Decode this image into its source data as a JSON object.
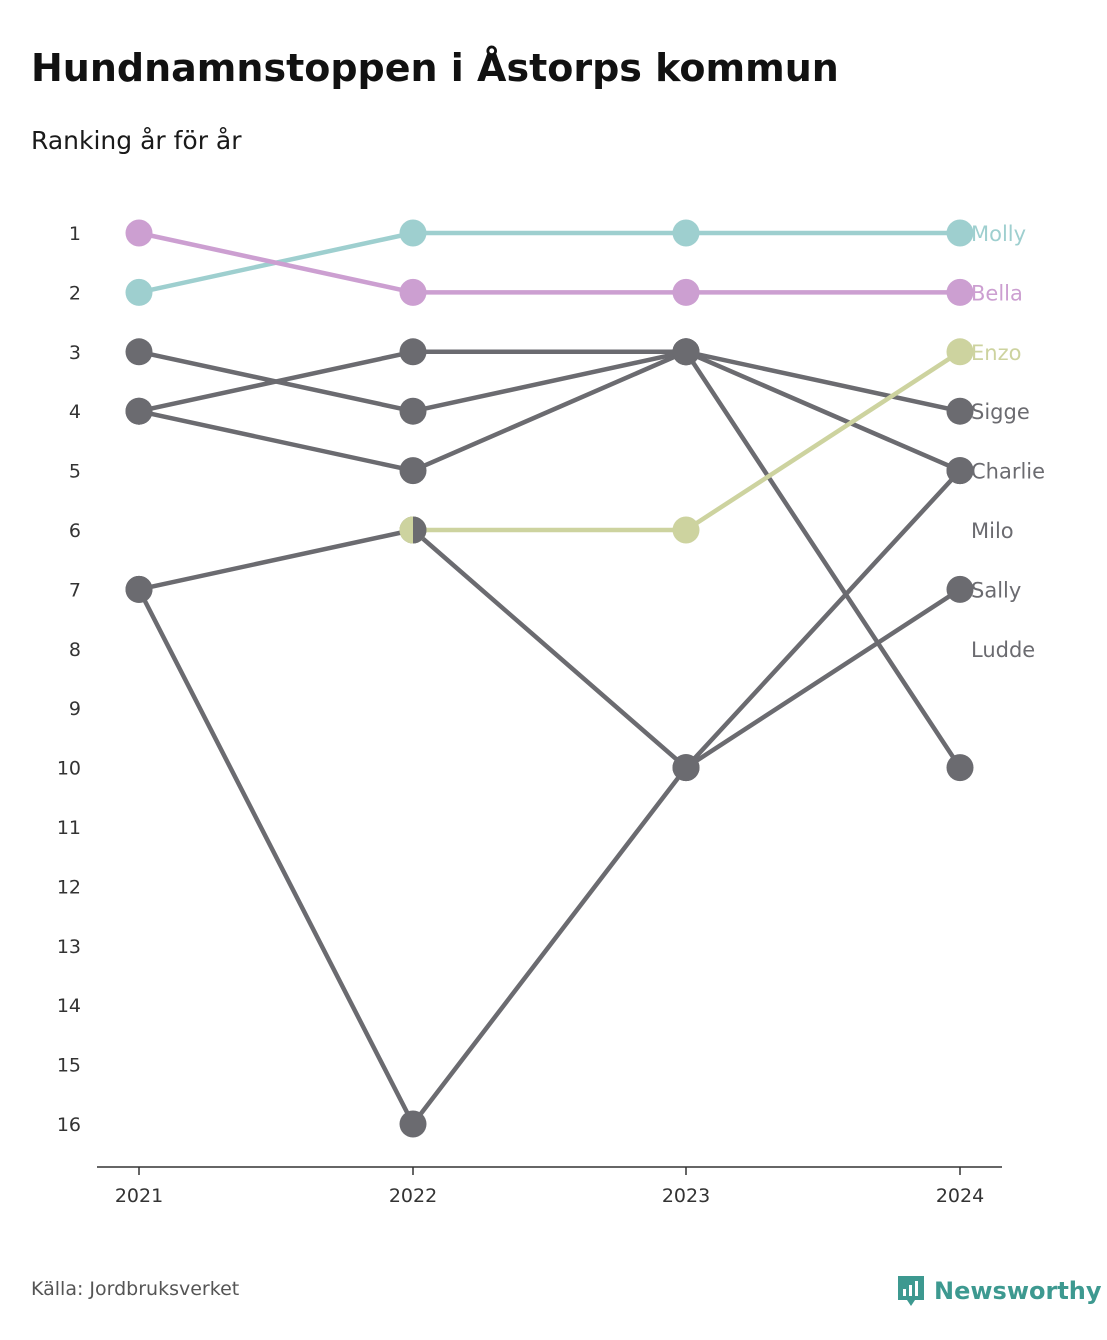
{
  "header": {
    "title": "Hundnamnstoppen i Åstorps kommun",
    "subtitle": "Ranking år för år"
  },
  "footer": {
    "source": "Källa: Jordbruksverket",
    "brand": "Newsworthy",
    "brand_icon": "newsworthy-logo-icon",
    "brand_color": "#3d9990"
  },
  "colors": {
    "default_line": "#6b6b70",
    "Molly": "#9ecfcf",
    "Bella": "#cc9fd1",
    "Enzo": "#cdd39f",
    "axis": "#333333"
  },
  "chart_data": {
    "type": "line",
    "title": "Hundnamnstoppen i Åstorps kommun",
    "subtitle": "Ranking år för år",
    "x": [
      "2021",
      "2022",
      "2023",
      "2024"
    ],
    "y_axis": {
      "reversed": true,
      "range": [
        1,
        16
      ],
      "ticks": [
        1,
        2,
        3,
        4,
        5,
        6,
        7,
        8,
        9,
        10,
        11,
        12,
        13,
        14,
        15,
        16
      ]
    },
    "grid": false,
    "legend": "direct labels at right end of lines",
    "series": [
      {
        "name": "Molly",
        "values": [
          2,
          1,
          1,
          1
        ],
        "color": "#9ecfcf"
      },
      {
        "name": "Bella",
        "values": [
          1,
          2,
          2,
          2
        ],
        "color": "#cc9fd1"
      },
      {
        "name": "Enzo",
        "values": [
          null,
          6,
          6,
          3
        ],
        "color": "#cdd39f"
      },
      {
        "name": "Sigge",
        "values": [
          3,
          4,
          3,
          4
        ],
        "color": "#6b6b70"
      },
      {
        "name": "Charlie",
        "values": [
          4,
          3,
          3,
          5
        ],
        "color": "#6b6b70"
      },
      {
        "name": "Milo",
        "values": [
          4,
          5,
          3,
          10
        ],
        "color": "#6b6b70"
      },
      {
        "name": "Sally",
        "values": [
          7,
          6,
          10,
          7
        ],
        "color": "#6b6b70"
      },
      {
        "name": "Ludde",
        "values": [
          7,
          16,
          10,
          5
        ],
        "color": "#6b6b70"
      }
    ],
    "label_ranks": {
      "Molly": 1,
      "Bella": 2,
      "Enzo": 3,
      "Sigge": 4,
      "Charlie": 5,
      "Milo": 6,
      "Sally": 7,
      "Ludde": 8
    }
  }
}
